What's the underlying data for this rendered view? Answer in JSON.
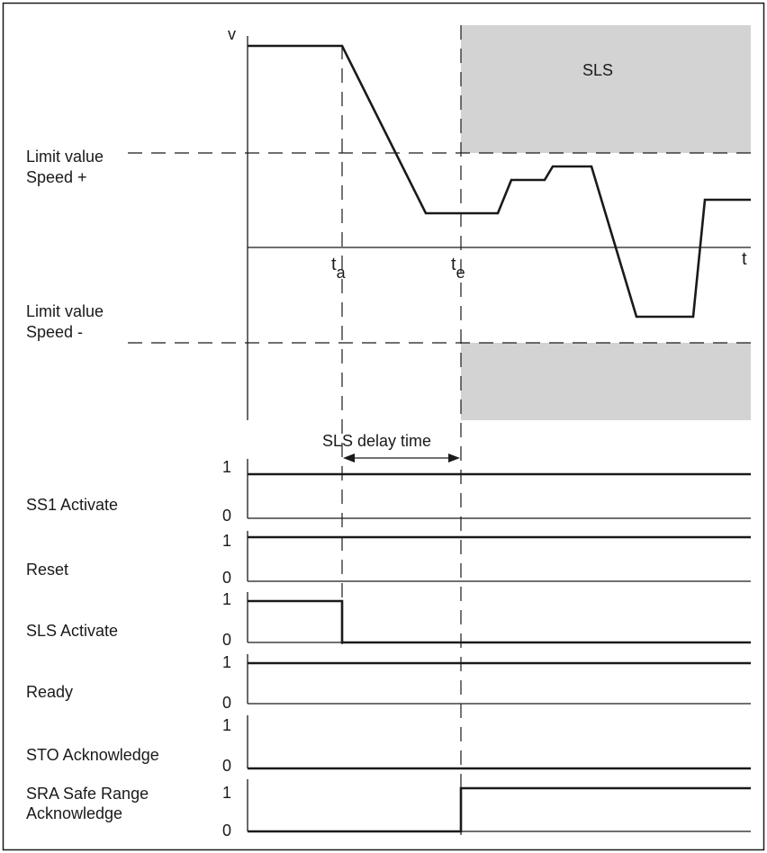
{
  "speed_chart": {
    "y_axis_label": "v",
    "x_axis_label": "t",
    "zone_label": "SLS",
    "limit_plus_label": [
      "Limit value",
      "Speed +"
    ],
    "limit_minus_label": [
      "Limit value",
      "Speed -"
    ],
    "time_a_main": "t",
    "time_a_sub": "a",
    "time_e_main": "t",
    "time_e_sub": "e",
    "delay_label": "SLS delay time",
    "zone_color": "#d3d3d3"
  },
  "signals": [
    {
      "label": [
        "SS1 Activate"
      ],
      "high": "1",
      "low": "0",
      "transition": "none-high"
    },
    {
      "label": [
        "Reset"
      ],
      "high": "1",
      "low": "0",
      "transition": "none-high"
    },
    {
      "label": [
        "SLS Activate"
      ],
      "high": "1",
      "low": "0",
      "transition": "high-to-low-at-ta"
    },
    {
      "label": [
        "Ready"
      ],
      "high": "1",
      "low": "0",
      "transition": "none-high"
    },
    {
      "label": [
        "STO Acknowledge"
      ],
      "high": "1",
      "low": "0",
      "transition": "none-low"
    },
    {
      "label": [
        "SRA Safe Range",
        "Acknowledge"
      ],
      "high": "1",
      "low": "0",
      "transition": "low-to-high-at-te"
    }
  ]
}
